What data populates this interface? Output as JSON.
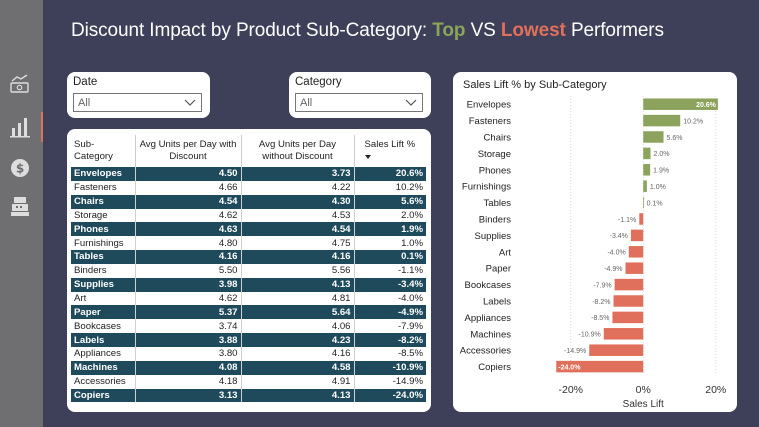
{
  "title": {
    "prefix": "Discount Impact by Product Sub-Category: ",
    "top": "Top",
    "middle": " VS ",
    "lowest": "Lowest",
    "suffix": " Performers"
  },
  "colors": {
    "positive": "#8ba35c",
    "negative": "#e0705c",
    "table_dark": "#1e4a5c",
    "background": "#3d4058"
  },
  "nav": [
    {
      "name": "money-trend-icon"
    },
    {
      "name": "bar-chart-icon",
      "active": true
    },
    {
      "name": "dollar-coin-icon"
    },
    {
      "name": "cash-register-icon"
    }
  ],
  "slicers": {
    "date": {
      "label": "Date",
      "value": "All"
    },
    "category": {
      "label": "Category",
      "value": "All"
    }
  },
  "table": {
    "headers": [
      "Sub-Category",
      "Avg Units per Day with Discount",
      "Avg Units per Day without Discount",
      "Sales Lift %"
    ],
    "rows": [
      [
        "Envelopes",
        "4.50",
        "3.73",
        "20.6%"
      ],
      [
        "Fasteners",
        "4.66",
        "4.22",
        "10.2%"
      ],
      [
        "Chairs",
        "4.54",
        "4.30",
        "5.6%"
      ],
      [
        "Storage",
        "4.62",
        "4.53",
        "2.0%"
      ],
      [
        "Phones",
        "4.63",
        "4.54",
        "1.9%"
      ],
      [
        "Furnishings",
        "4.80",
        "4.75",
        "1.0%"
      ],
      [
        "Tables",
        "4.16",
        "4.16",
        "0.1%"
      ],
      [
        "Binders",
        "5.50",
        "5.56",
        "-1.1%"
      ],
      [
        "Supplies",
        "3.98",
        "4.13",
        "-3.4%"
      ],
      [
        "Art",
        "4.62",
        "4.81",
        "-4.0%"
      ],
      [
        "Paper",
        "5.37",
        "5.64",
        "-4.9%"
      ],
      [
        "Bookcases",
        "3.74",
        "4.06",
        "-7.9%"
      ],
      [
        "Labels",
        "3.88",
        "4.23",
        "-8.2%"
      ],
      [
        "Appliances",
        "3.80",
        "4.16",
        "-8.5%"
      ],
      [
        "Machines",
        "4.08",
        "4.58",
        "-10.9%"
      ],
      [
        "Accessories",
        "4.18",
        "4.91",
        "-14.9%"
      ],
      [
        "Copiers",
        "3.13",
        "4.13",
        "-24.0%"
      ]
    ]
  },
  "chart_data": {
    "type": "bar",
    "orientation": "horizontal",
    "title": "Sales Lift % by Sub-Category",
    "xlabel": "Sales Lift",
    "xlim": [
      -0.26,
      0.22
    ],
    "xticks": [
      {
        "value": -0.2,
        "label": "-20%"
      },
      {
        "value": 0,
        "label": "0%"
      },
      {
        "value": 0.2,
        "label": "20%"
      }
    ],
    "categories": [
      "Envelopes",
      "Fasteners",
      "Chairs",
      "Storage",
      "Phones",
      "Furnishings",
      "Tables",
      "Binders",
      "Supplies",
      "Art",
      "Paper",
      "Bookcases",
      "Labels",
      "Appliances",
      "Machines",
      "Accessories",
      "Copiers"
    ],
    "values": [
      0.206,
      0.102,
      0.056,
      0.02,
      0.019,
      0.01,
      0.001,
      -0.011,
      -0.034,
      -0.04,
      -0.049,
      -0.079,
      -0.082,
      -0.085,
      -0.109,
      -0.149,
      -0.24
    ],
    "labels": [
      "20.6%",
      "10.2%",
      "5.6%",
      "2.0%",
      "1.9%",
      "1.0%",
      "0.1%",
      "-1.1%",
      "-3.4%",
      "-4.0%",
      "-4.9%",
      "-7.9%",
      "-8.2%",
      "-8.5%",
      "-10.9%",
      "-14.9%",
      "-24.0%"
    ]
  }
}
